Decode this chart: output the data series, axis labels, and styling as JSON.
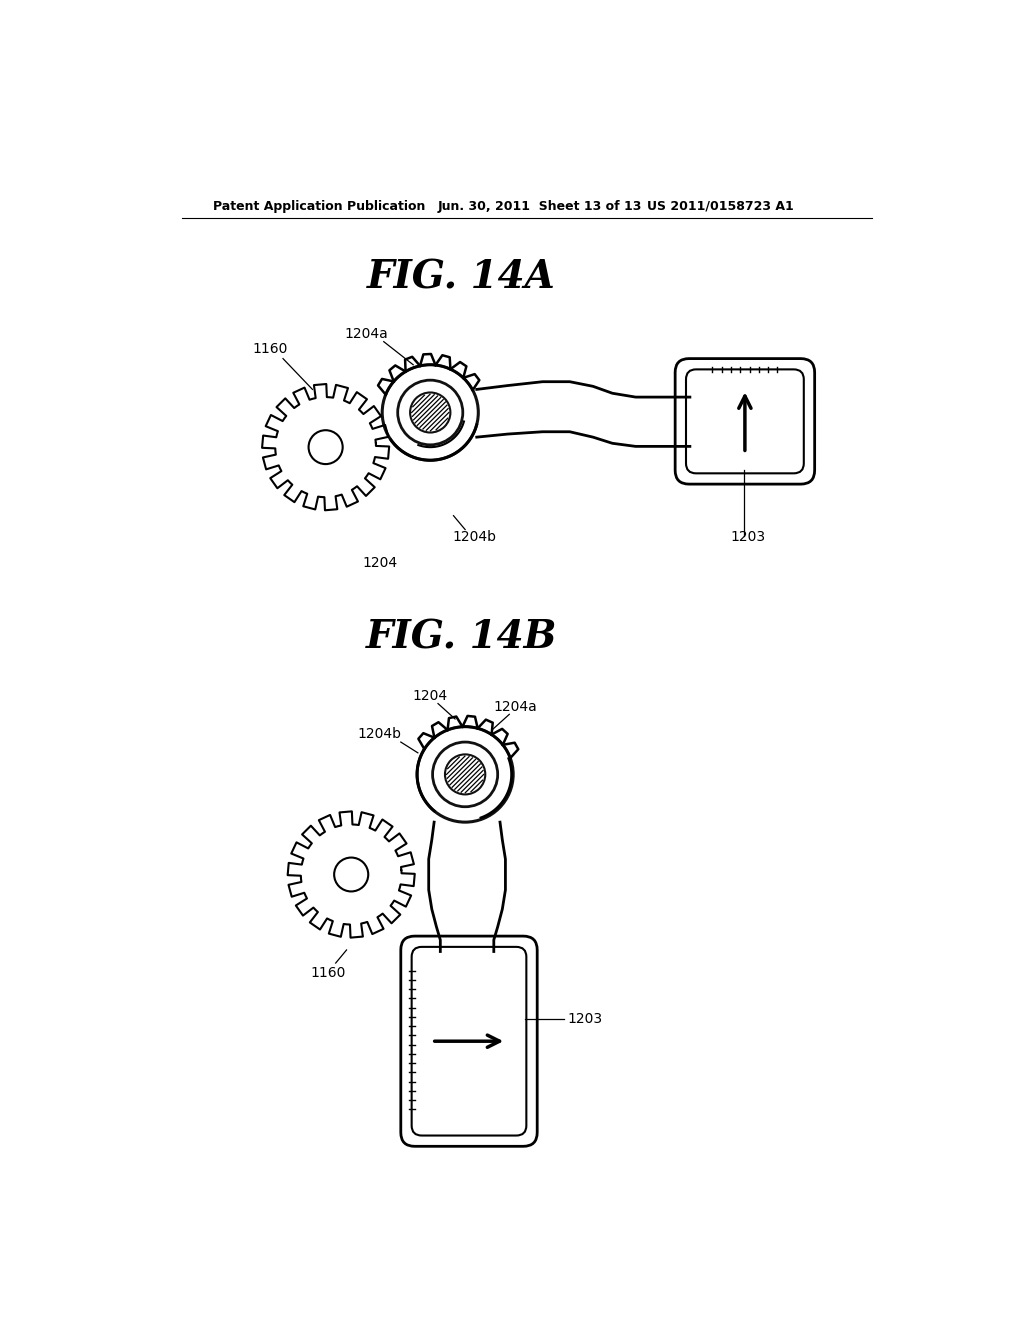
{
  "bg_color": "#ffffff",
  "header_text": "Patent Application Publication",
  "header_date": "Jun. 30, 2011  Sheet 13 of 13",
  "header_patent": "US 2011/0158723 A1",
  "fig14a_title": "FIG. 14A",
  "fig14b_title": "FIG. 14B"
}
